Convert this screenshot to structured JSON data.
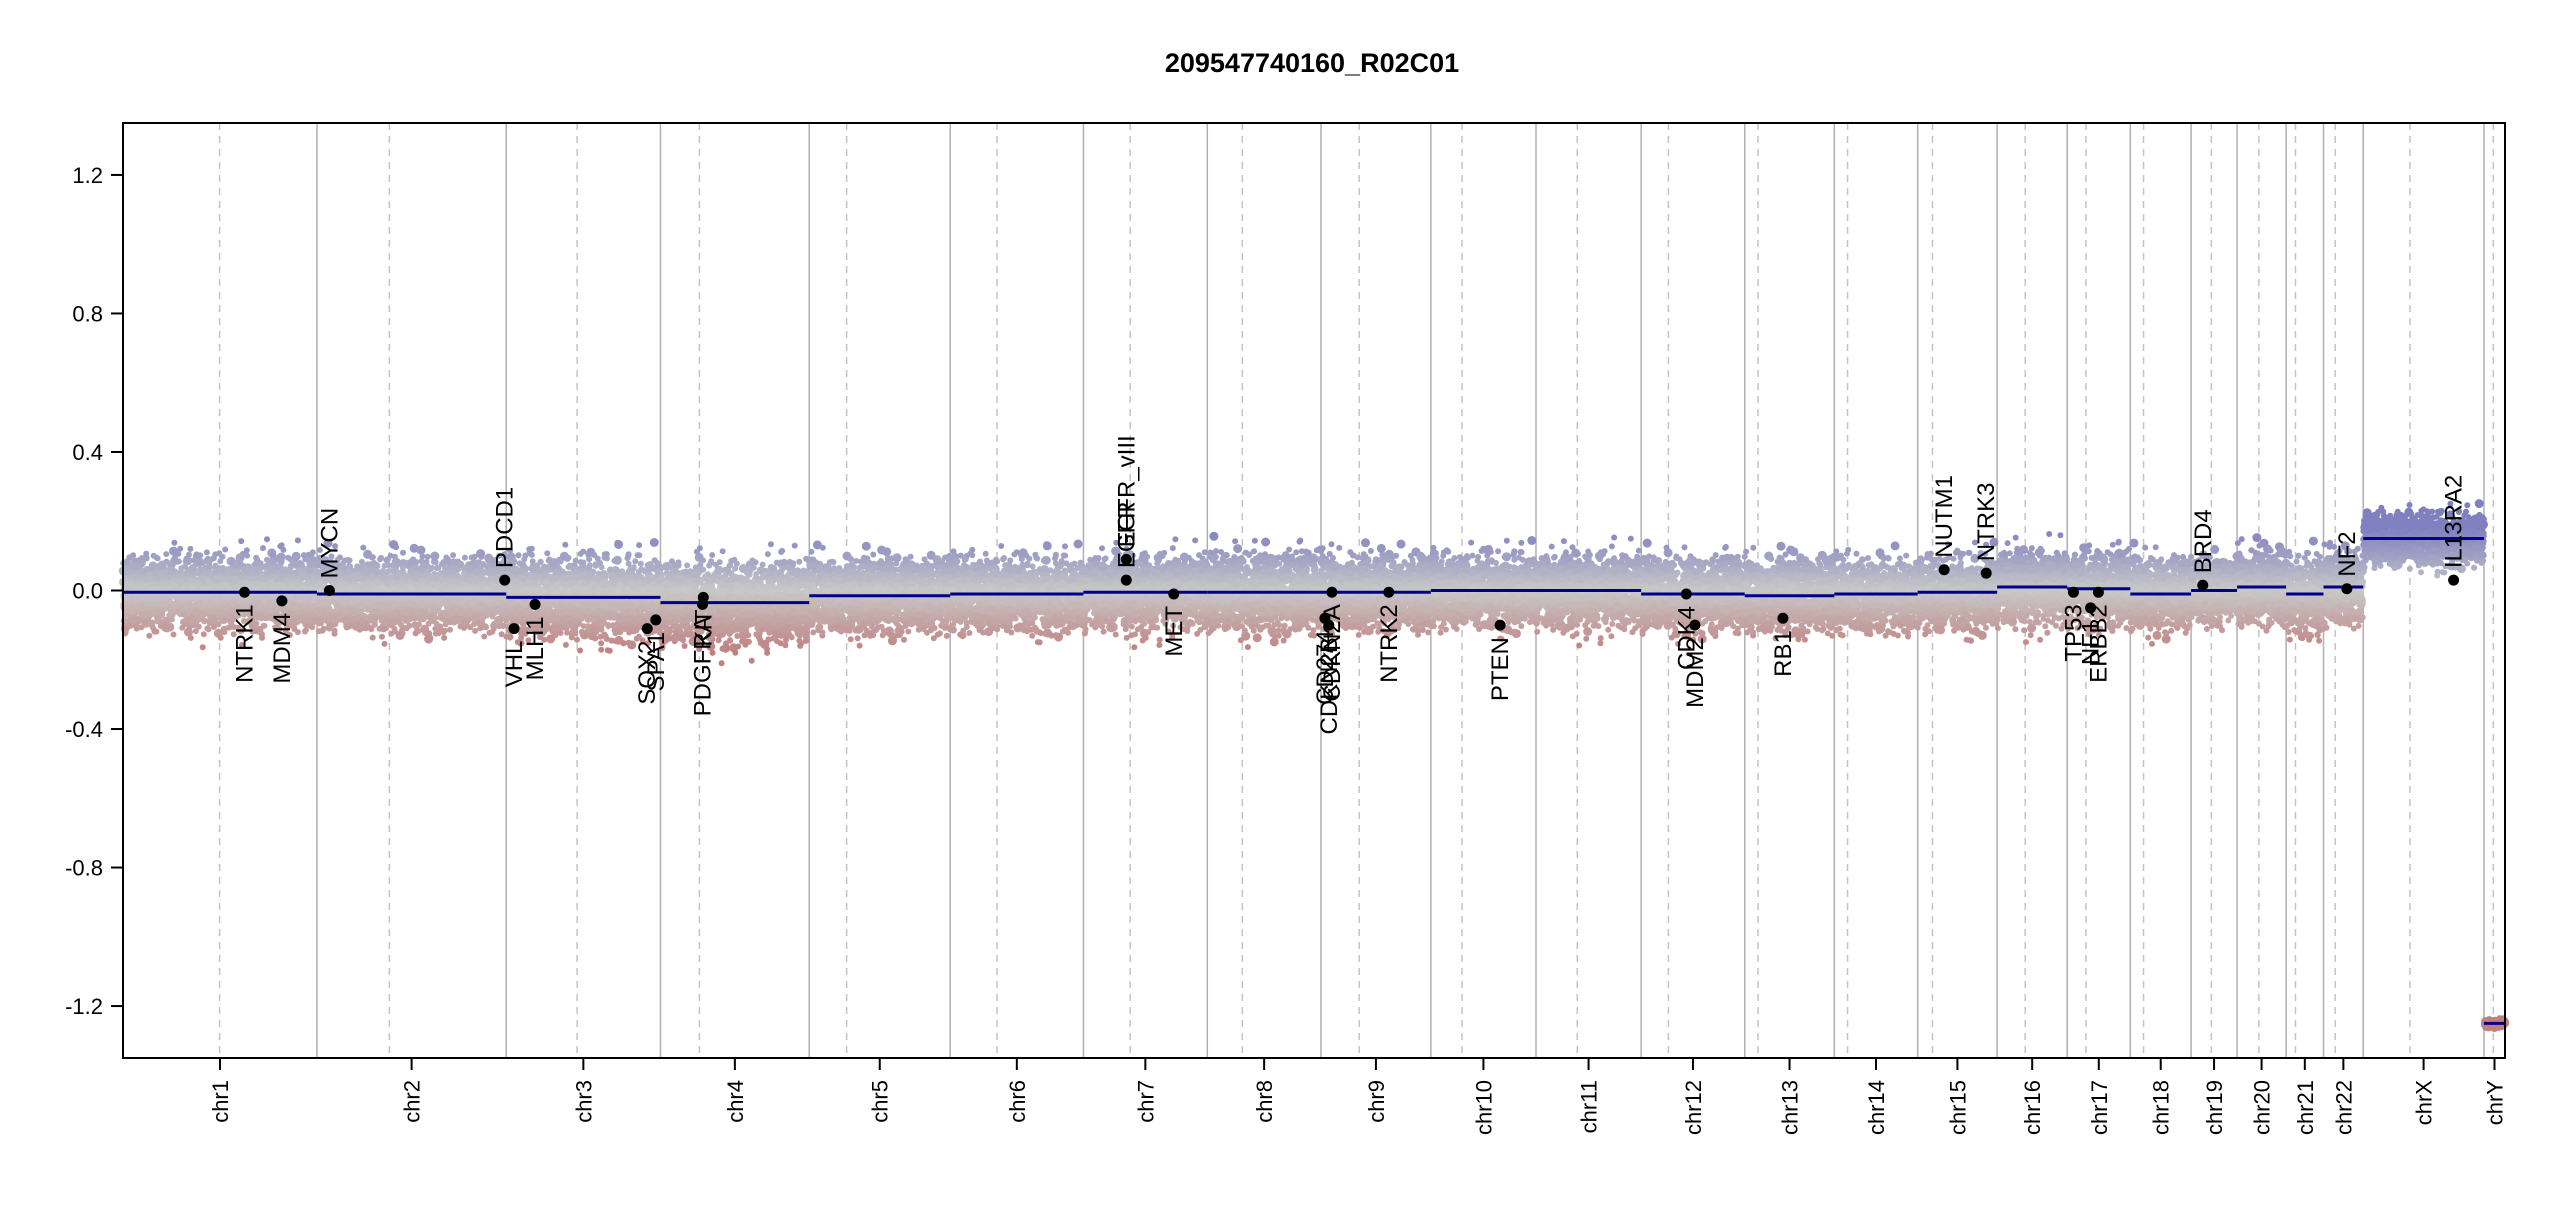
{
  "chart_data": {
    "type": "scatter",
    "title": "209547740160_R02C01",
    "xlabel": "",
    "ylabel": "",
    "ylim": [
      -1.35,
      1.35
    ],
    "yticks": [
      1.2,
      0.8,
      0.4,
      0.0,
      -0.4,
      -0.8,
      -1.2
    ],
    "ytick_labels": [
      "1.2",
      "0.8",
      "0.4",
      "0.0",
      "-0.4",
      "-0.8",
      "-1.2"
    ],
    "colors": {
      "segment": "#00008b",
      "gain": "#8080c0",
      "loss": "#c08080",
      "neutral": "#c8c8c8",
      "gene_point": "#000000",
      "boundary": "#b0b0b0"
    },
    "chromosomes": [
      {
        "name": "chr1",
        "length": 249,
        "centromere": 124,
        "segments": [
          {
            "s": 0,
            "e": 249,
            "v": -0.005
          }
        ],
        "noise": 0.1
      },
      {
        "name": "chr2",
        "length": 243,
        "centromere": 93,
        "segments": [
          {
            "s": 0,
            "e": 243,
            "v": -0.01
          }
        ],
        "noise": 0.1
      },
      {
        "name": "chr3",
        "length": 198,
        "centromere": 91,
        "segments": [
          {
            "s": 0,
            "e": 198,
            "v": -0.02
          }
        ],
        "noise": 0.11
      },
      {
        "name": "chr4",
        "length": 191,
        "centromere": 50,
        "segments": [
          {
            "s": 0,
            "e": 191,
            "v": -0.035
          }
        ],
        "noise": 0.11
      },
      {
        "name": "chr5",
        "length": 181,
        "centromere": 48,
        "segments": [
          {
            "s": 0,
            "e": 181,
            "v": -0.015
          }
        ],
        "noise": 0.1
      },
      {
        "name": "chr6",
        "length": 171,
        "centromere": 60,
        "segments": [
          {
            "s": 0,
            "e": 171,
            "v": -0.01
          }
        ],
        "noise": 0.1
      },
      {
        "name": "chr7",
        "length": 159,
        "centromere": 60,
        "segments": [
          {
            "s": 0,
            "e": 159,
            "v": -0.005
          }
        ],
        "noise": 0.1
      },
      {
        "name": "chr8",
        "length": 146,
        "centromere": 45,
        "segments": [
          {
            "s": 0,
            "e": 146,
            "v": -0.005
          }
        ],
        "noise": 0.11
      },
      {
        "name": "chr9",
        "length": 141,
        "centromere": 49,
        "segments": [
          {
            "s": 0,
            "e": 141,
            "v": -0.005
          }
        ],
        "noise": 0.1
      },
      {
        "name": "chr10",
        "length": 135,
        "centromere": 40,
        "segments": [
          {
            "s": 0,
            "e": 135,
            "v": 0.0
          }
        ],
        "noise": 0.1
      },
      {
        "name": "chr11",
        "length": 135,
        "centromere": 53,
        "segments": [
          {
            "s": 0,
            "e": 135,
            "v": 0.0
          }
        ],
        "noise": 0.1
      },
      {
        "name": "chr12",
        "length": 133,
        "centromere": 35,
        "segments": [
          {
            "s": 0,
            "e": 133,
            "v": -0.01
          }
        ],
        "noise": 0.1
      },
      {
        "name": "chr13",
        "length": 115,
        "centromere": 17,
        "segments": [
          {
            "s": 0,
            "e": 115,
            "v": -0.015
          }
        ],
        "noise": 0.1
      },
      {
        "name": "chr14",
        "length": 107,
        "centromere": 17,
        "segments": [
          {
            "s": 0,
            "e": 107,
            "v": -0.01
          }
        ],
        "noise": 0.1
      },
      {
        "name": "chr15",
        "length": 102,
        "centromere": 19,
        "segments": [
          {
            "s": 0,
            "e": 102,
            "v": -0.005
          }
        ],
        "noise": 0.1
      },
      {
        "name": "chr16",
        "length": 90,
        "centromere": 36,
        "segments": [
          {
            "s": 0,
            "e": 90,
            "v": 0.01
          }
        ],
        "noise": 0.1
      },
      {
        "name": "chr17",
        "length": 81,
        "centromere": 24,
        "segments": [
          {
            "s": 0,
            "e": 81,
            "v": 0.005
          }
        ],
        "noise": 0.1
      },
      {
        "name": "chr18",
        "length": 78,
        "centromere": 17,
        "segments": [
          {
            "s": 0,
            "e": 78,
            "v": -0.01
          }
        ],
        "noise": 0.1
      },
      {
        "name": "chr19",
        "length": 59,
        "centromere": 26,
        "segments": [
          {
            "s": 0,
            "e": 59,
            "v": 0.0
          }
        ],
        "noise": 0.09
      },
      {
        "name": "chr20",
        "length": 63,
        "centromere": 28,
        "segments": [
          {
            "s": 0,
            "e": 63,
            "v": 0.01
          }
        ],
        "noise": 0.1
      },
      {
        "name": "chr21",
        "length": 48,
        "centromere": 12,
        "segments": [
          {
            "s": 0,
            "e": 48,
            "v": -0.01
          }
        ],
        "noise": 0.11
      },
      {
        "name": "chr22",
        "length": 51,
        "centromere": 15,
        "segments": [
          {
            "s": 0,
            "e": 51,
            "v": 0.01
          }
        ],
        "noise": 0.1
      },
      {
        "name": "chrX",
        "length": 155,
        "centromere": 60,
        "segments": [
          {
            "s": 0,
            "e": 155,
            "v": 0.15
          }
        ],
        "noise": 0.07
      },
      {
        "name": "chrY",
        "length": 27,
        "centromere": 12,
        "segments": [
          {
            "s": 0,
            "e": 27,
            "v": -1.25
          }
        ],
        "noise": 0.01
      }
    ],
    "genes": [
      {
        "name": "NTRK1",
        "chr": "chr1",
        "pos": 156,
        "value": -0.005
      },
      {
        "name": "MDM4",
        "chr": "chr1",
        "pos": 204,
        "value": -0.03
      },
      {
        "name": "MYCN",
        "chr": "chr2",
        "pos": 16,
        "value": 0.0
      },
      {
        "name": "PDCD1",
        "chr": "chr2",
        "pos": 241,
        "value": 0.03
      },
      {
        "name": "VHL",
        "chr": "chr3",
        "pos": 10,
        "value": -0.11
      },
      {
        "name": "MLH1",
        "chr": "chr3",
        "pos": 37,
        "value": -0.04
      },
      {
        "name": "SOX2",
        "chr": "chr3",
        "pos": 181,
        "value": -0.11
      },
      {
        "name": "SPA1",
        "chr": "chr3",
        "pos": 192,
        "value": -0.085
      },
      {
        "name": "KIT",
        "chr": "chr4",
        "pos": 55,
        "value": -0.02
      },
      {
        "name": "PDGFRA",
        "chr": "chr4",
        "pos": 54,
        "value": -0.04
      },
      {
        "name": "EGFR_vIII",
        "chr": "chr7",
        "pos": 55,
        "value": 0.09
      },
      {
        "name": "EGFR",
        "chr": "chr7",
        "pos": 55,
        "value": 0.03
      },
      {
        "name": "MET",
        "chr": "chr7",
        "pos": 116,
        "value": -0.01
      },
      {
        "name": "CD274",
        "chr": "chr9",
        "pos": 5,
        "value": -0.08
      },
      {
        "name": "CDKN2B",
        "chr": "chr9",
        "pos": 10,
        "value": -0.1
      },
      {
        "name": "CDKN2A",
        "chr": "chr9",
        "pos": 14,
        "value": -0.005
      },
      {
        "name": "NTRK2",
        "chr": "chr9",
        "pos": 87,
        "value": -0.005
      },
      {
        "name": "PTEN",
        "chr": "chr10",
        "pos": 89,
        "value": -0.1
      },
      {
        "name": "CDK4",
        "chr": "chr12",
        "pos": 58,
        "value": -0.01
      },
      {
        "name": "MDM2",
        "chr": "chr12",
        "pos": 69,
        "value": -0.1
      },
      {
        "name": "RB1",
        "chr": "chr13",
        "pos": 49,
        "value": -0.08
      },
      {
        "name": "NUTM1",
        "chr": "chr15",
        "pos": 34,
        "value": 0.06
      },
      {
        "name": "NTRK3",
        "chr": "chr15",
        "pos": 88,
        "value": 0.05
      },
      {
        "name": "TP53",
        "chr": "chr17",
        "pos": 8,
        "value": -0.005
      },
      {
        "name": "NF1",
        "chr": "chr17",
        "pos": 30,
        "value": -0.05
      },
      {
        "name": "ERBB2",
        "chr": "chr17",
        "pos": 40,
        "value": -0.005
      },
      {
        "name": "BRD4",
        "chr": "chr19",
        "pos": 15,
        "value": 0.015
      },
      {
        "name": "NF2",
        "chr": "chr22",
        "pos": 30,
        "value": 0.005
      },
      {
        "name": "IL13RA2",
        "chr": "chrX",
        "pos": 116,
        "value": 0.03
      }
    ]
  }
}
